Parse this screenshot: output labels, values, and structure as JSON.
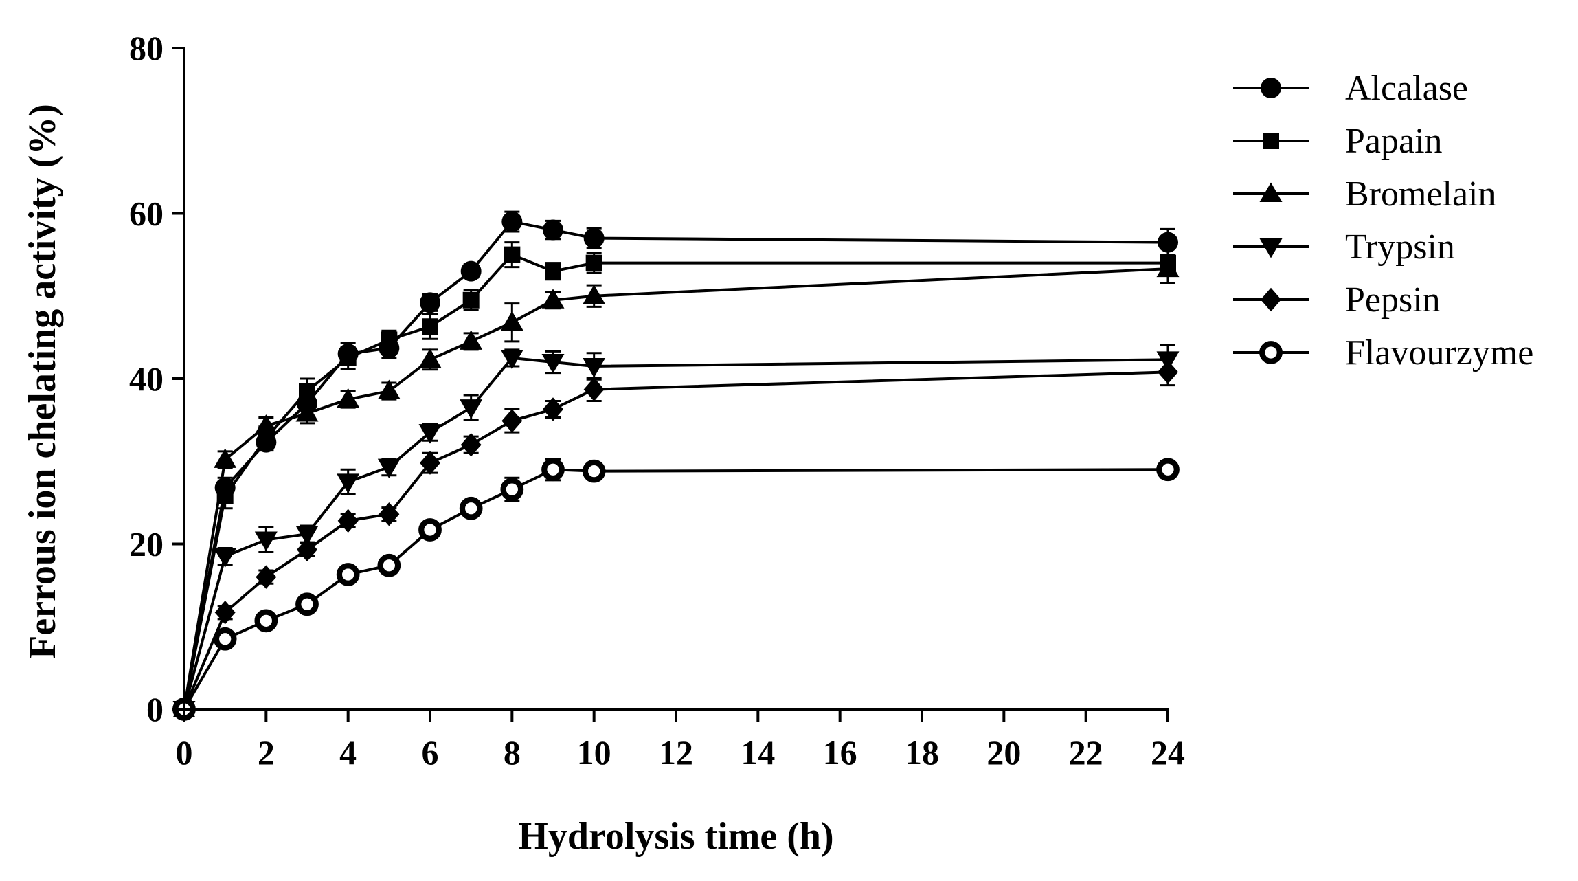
{
  "chart_data": {
    "type": "line",
    "title": "",
    "xlabel": "Hydrolysis time (h)",
    "ylabel": "Ferrous ion chelating activity (%)",
    "xlim": [
      0,
      24
    ],
    "ylim": [
      0,
      80
    ],
    "x_ticks": [
      "0",
      "2",
      "4",
      "6",
      "8",
      "10",
      "12",
      "14",
      "16",
      "18",
      "20",
      "22",
      "24"
    ],
    "y_ticks": [
      "0",
      "20",
      "40",
      "60",
      "80"
    ],
    "grid": false,
    "legend_position": "top-right",
    "x": [
      0,
      1,
      2,
      3,
      4,
      5,
      6,
      7,
      8,
      9,
      10,
      24
    ],
    "series": [
      {
        "name": "Alcalase",
        "marker": "circle",
        "values": [
          0,
          26.8,
          32.3,
          37.0,
          43.0,
          43.7,
          49.2,
          53.0,
          59.0,
          58.0,
          57.0,
          56.5
        ],
        "errors": [
          0,
          1.2,
          1.0,
          1.5,
          1.3,
          1.2,
          1.0,
          0.8,
          1.2,
          1.1,
          1.2,
          1.6
        ]
      },
      {
        "name": "Papain",
        "marker": "square",
        "values": [
          0,
          25.8,
          32.8,
          38.5,
          42.5,
          44.7,
          46.3,
          49.5,
          55.0,
          53.0,
          54.0,
          54.0
        ],
        "errors": [
          0,
          1.5,
          1.4,
          1.5,
          1.3,
          1.1,
          1.5,
          1.2,
          1.5,
          1.0,
          1.2,
          1.0
        ]
      },
      {
        "name": "Bromelain",
        "marker": "triangle-up",
        "values": [
          0,
          30.2,
          34.3,
          35.8,
          37.5,
          38.5,
          42.3,
          44.5,
          46.8,
          49.5,
          50.0,
          53.3
        ],
        "errors": [
          0,
          1.0,
          1.0,
          1.2,
          1.0,
          1.0,
          1.2,
          1.0,
          2.3,
          1.0,
          1.3,
          1.7
        ]
      },
      {
        "name": "Trypsin",
        "marker": "triangle-down",
        "values": [
          0,
          18.5,
          20.5,
          21.2,
          27.5,
          29.3,
          33.5,
          36.5,
          42.5,
          42.0,
          41.5,
          42.3
        ],
        "errors": [
          0,
          1.0,
          1.5,
          1.0,
          1.5,
          1.0,
          1.0,
          1.5,
          1.0,
          1.3,
          1.6,
          1.8
        ]
      },
      {
        "name": "Pepsin",
        "marker": "diamond",
        "values": [
          0,
          11.7,
          16.0,
          19.3,
          22.8,
          23.6,
          29.8,
          32.0,
          34.9,
          36.3,
          38.7,
          40.8
        ],
        "errors": [
          0,
          0.8,
          0.8,
          0.8,
          0.8,
          0.8,
          1.2,
          1.0,
          1.4,
          1.0,
          1.4,
          1.6
        ]
      },
      {
        "name": "Flavourzyme",
        "marker": "open-circle",
        "values": [
          0,
          8.5,
          10.7,
          12.7,
          16.3,
          17.4,
          21.7,
          24.3,
          26.6,
          29.0,
          28.8,
          29.0
        ],
        "errors": [
          0,
          0.8,
          0.8,
          0.8,
          0.8,
          0.8,
          0.8,
          0.8,
          1.4,
          1.3,
          0.8,
          1.0
        ]
      }
    ]
  }
}
